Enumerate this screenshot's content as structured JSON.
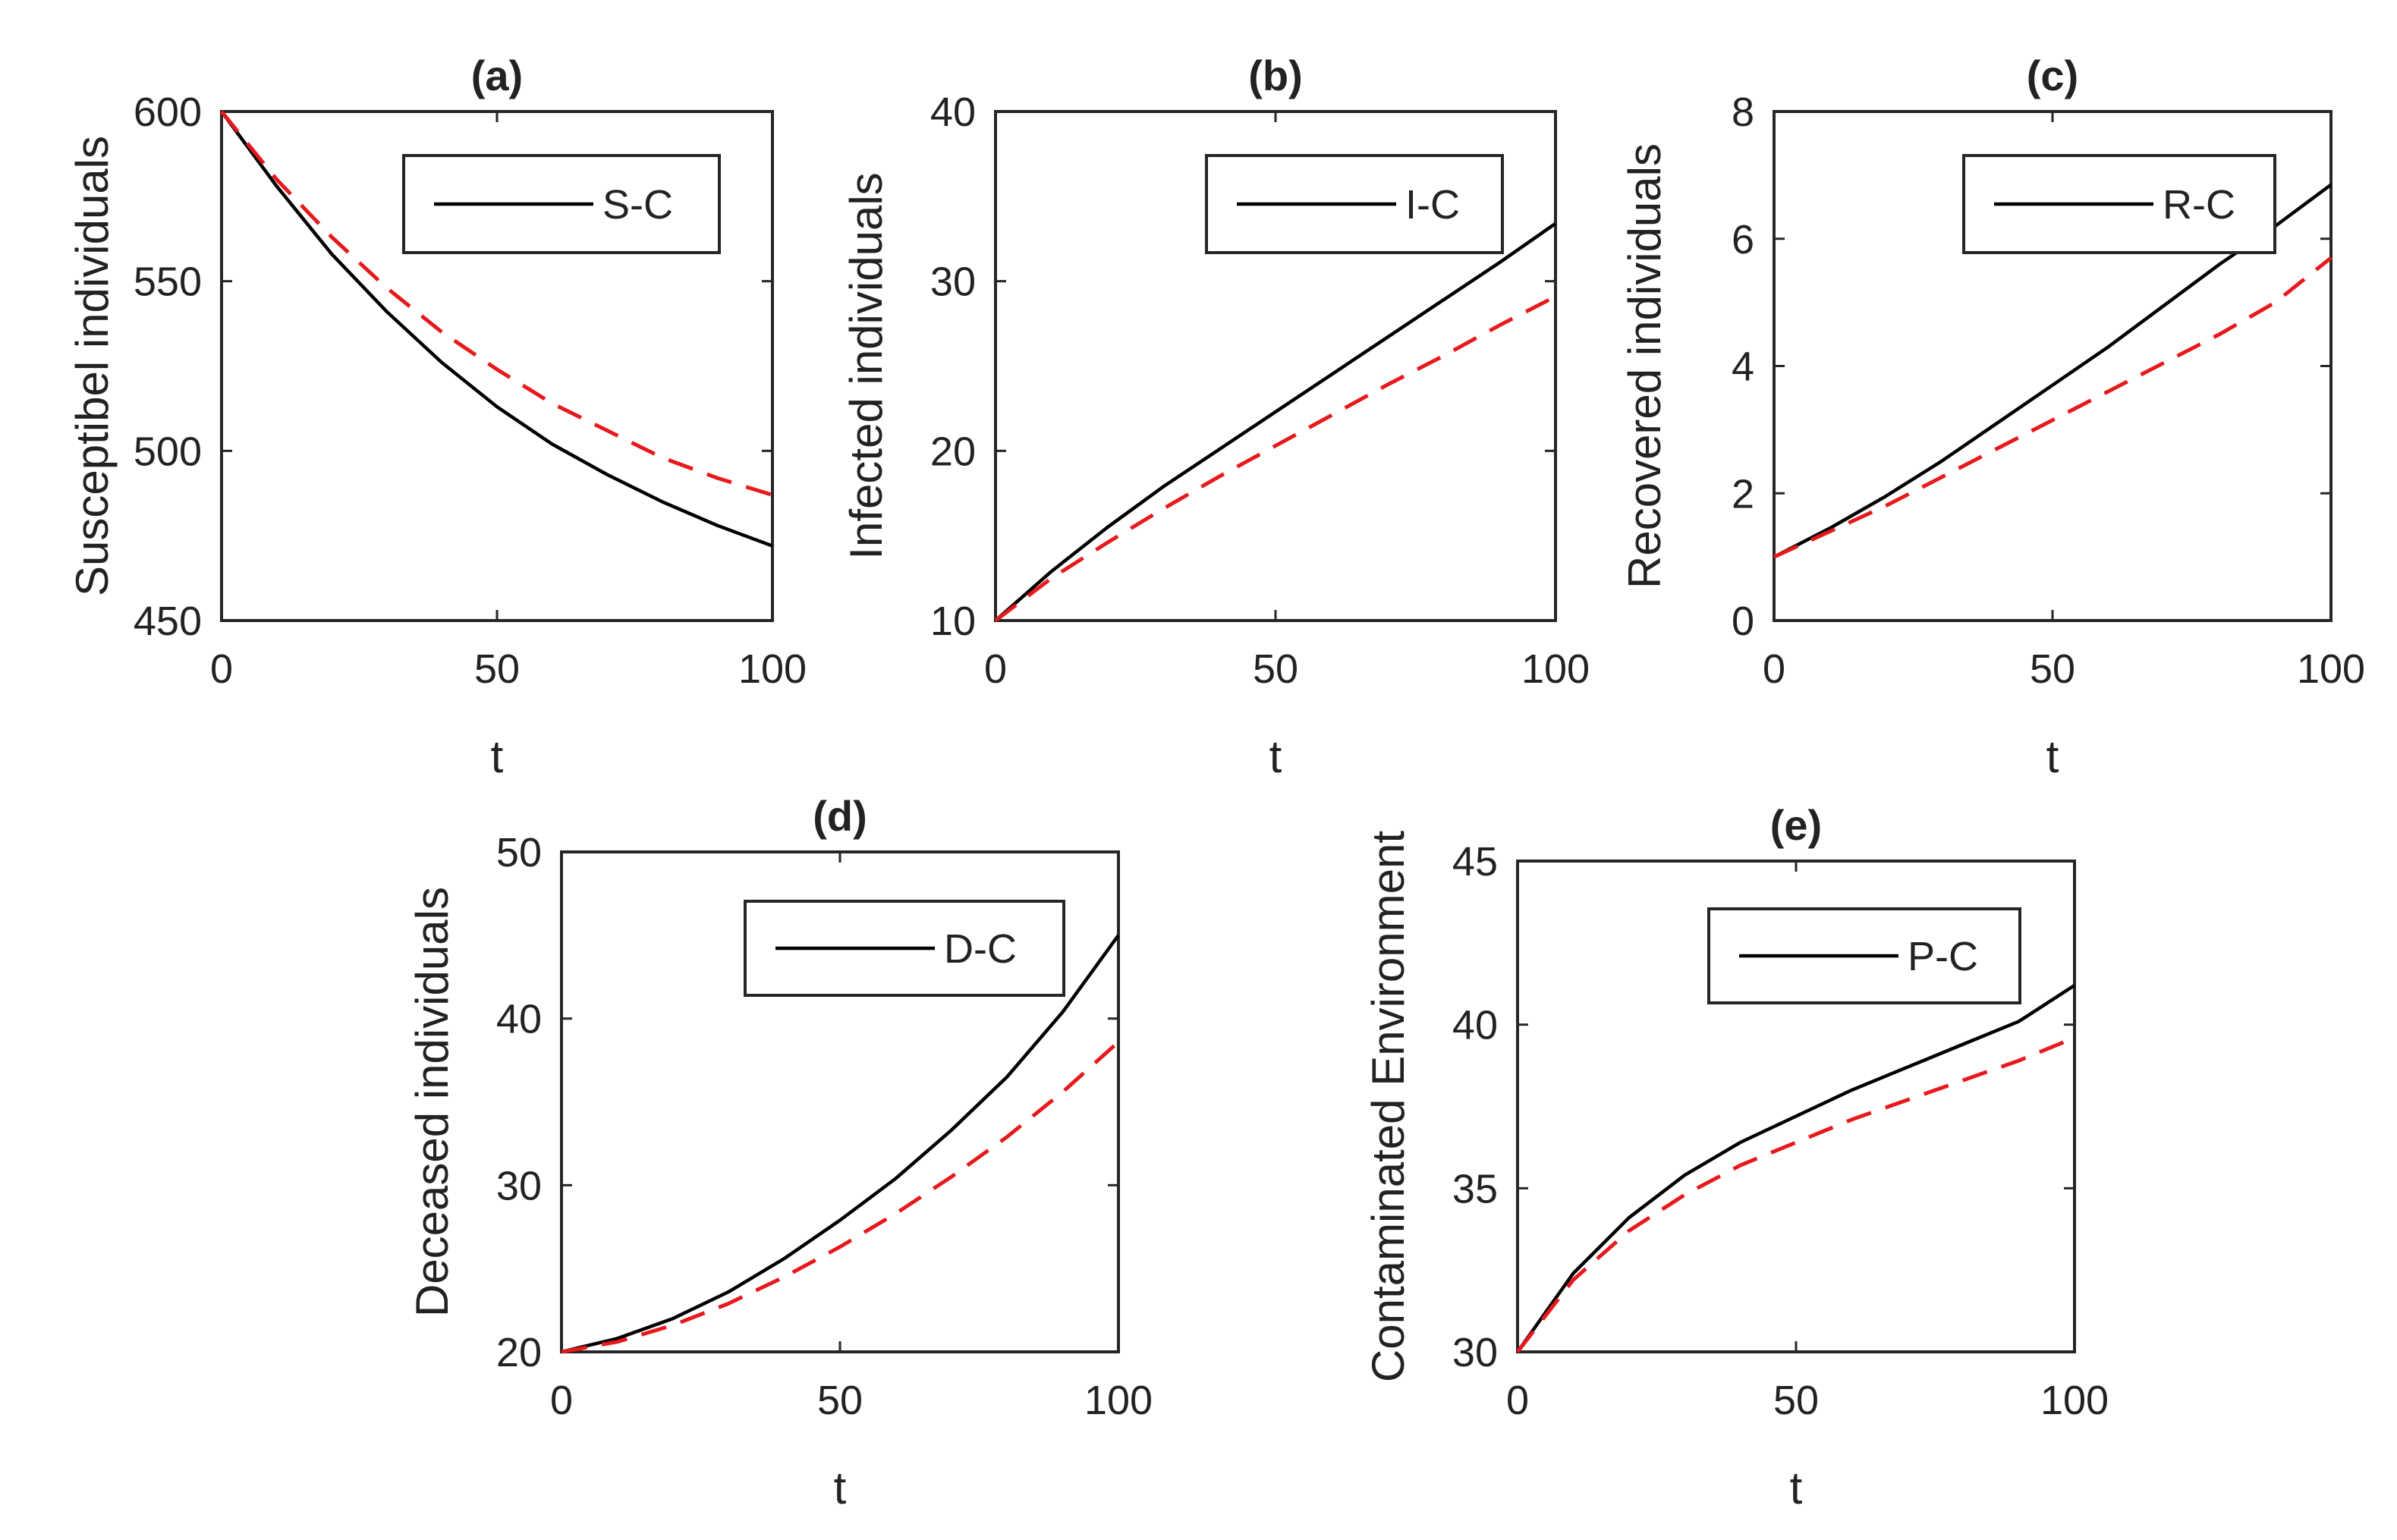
{
  "chart_data": [
    {
      "type": "line",
      "title": "(a)",
      "xlabel": "t",
      "ylabel": "Susceptibel individuals",
      "xlim": [
        0,
        100
      ],
      "ylim": [
        450,
        600
      ],
      "xticks": [
        0,
        50,
        100
      ],
      "yticks": [
        450,
        500,
        550,
        600
      ],
      "legend": {
        "label": "S-C",
        "position": "top-right"
      },
      "x": [
        0,
        10,
        20,
        30,
        40,
        50,
        60,
        70,
        80,
        90,
        100
      ],
      "series": [
        {
          "name": "S-C",
          "style": "solid",
          "color": "#000000",
          "values": [
            600,
            578,
            558,
            541,
            526,
            513,
            502,
            493,
            485,
            478,
            472
          ]
        },
        {
          "name": "",
          "style": "dashed",
          "color": "#e8191c",
          "values": [
            600,
            580,
            563,
            548,
            535,
            524,
            514,
            506,
            498,
            492,
            487
          ]
        }
      ]
    },
    {
      "type": "line",
      "title": "(b)",
      "xlabel": "t",
      "ylabel": "Infected individuals",
      "xlim": [
        0,
        100
      ],
      "ylim": [
        10,
        40
      ],
      "xticks": [
        0,
        50,
        100
      ],
      "yticks": [
        10,
        20,
        30,
        40
      ],
      "legend": {
        "label": "I-C",
        "position": "top-right"
      },
      "x": [
        0,
        10,
        20,
        30,
        40,
        50,
        60,
        70,
        80,
        90,
        100
      ],
      "series": [
        {
          "name": "I-C",
          "style": "solid",
          "color": "#000000",
          "values": [
            10,
            12.9,
            15.5,
            17.9,
            20.1,
            22.3,
            24.5,
            26.7,
            28.9,
            31.1,
            33.4
          ]
        },
        {
          "name": "",
          "style": "dashed",
          "color": "#e8191c",
          "values": [
            10,
            12.5,
            14.6,
            16.6,
            18.5,
            20.3,
            22.1,
            23.9,
            25.6,
            27.4,
            29.1
          ]
        }
      ]
    },
    {
      "type": "line",
      "title": "(c)",
      "xlabel": "t",
      "ylabel": "Recovered individuals",
      "xlim": [
        0,
        100
      ],
      "ylim": [
        0,
        8
      ],
      "xticks": [
        0,
        50,
        100
      ],
      "yticks": [
        0,
        2,
        4,
        6,
        8
      ],
      "legend": {
        "label": "R-C",
        "position": "top-right"
      },
      "x": [
        0,
        10,
        20,
        30,
        40,
        50,
        60,
        70,
        80,
        90,
        100
      ],
      "series": [
        {
          "name": "R-C",
          "style": "solid",
          "color": "#000000",
          "values": [
            1.0,
            1.45,
            1.95,
            2.5,
            3.1,
            3.7,
            4.3,
            4.95,
            5.6,
            6.2,
            6.85
          ]
        },
        {
          "name": "",
          "style": "dashed",
          "color": "#e8191c",
          "values": [
            1.0,
            1.4,
            1.8,
            2.25,
            2.7,
            3.15,
            3.6,
            4.05,
            4.5,
            5.0,
            5.7
          ]
        }
      ]
    },
    {
      "type": "line",
      "title": "(d)",
      "xlabel": "t",
      "ylabel": "Deceased individuals",
      "xlim": [
        0,
        100
      ],
      "ylim": [
        20,
        50
      ],
      "xticks": [
        0,
        50,
        100
      ],
      "yticks": [
        20,
        30,
        40,
        50
      ],
      "legend": {
        "label": "D-C",
        "position": "top-right"
      },
      "x": [
        0,
        10,
        20,
        30,
        40,
        50,
        60,
        70,
        80,
        90,
        100
      ],
      "series": [
        {
          "name": "D-C",
          "style": "solid",
          "color": "#000000",
          "values": [
            20,
            20.8,
            22.0,
            23.6,
            25.6,
            27.9,
            30.4,
            33.3,
            36.5,
            40.4,
            45.0
          ]
        },
        {
          "name": "",
          "style": "dashed",
          "color": "#e8191c",
          "values": [
            20,
            20.6,
            21.6,
            22.9,
            24.5,
            26.3,
            28.3,
            30.5,
            32.9,
            35.6,
            38.6
          ]
        }
      ]
    },
    {
      "type": "line",
      "title": "(e)",
      "xlabel": "t",
      "ylabel": "Contaminated Environment",
      "xlim": [
        0,
        100
      ],
      "ylim": [
        30,
        45
      ],
      "xticks": [
        0,
        50,
        100
      ],
      "yticks": [
        30,
        35,
        40,
        45
      ],
      "legend": {
        "label": "P-C",
        "position": "top-right"
      },
      "x": [
        0,
        10,
        20,
        30,
        40,
        50,
        60,
        70,
        80,
        90,
        100
      ],
      "series": [
        {
          "name": "P-C",
          "style": "solid",
          "color": "#000000",
          "values": [
            30,
            32.4,
            34.1,
            35.4,
            36.4,
            37.2,
            38.0,
            38.7,
            39.4,
            40.1,
            41.2
          ]
        },
        {
          "name": "",
          "style": "dashed",
          "color": "#e8191c",
          "values": [
            30,
            32.2,
            33.7,
            34.8,
            35.7,
            36.4,
            37.1,
            37.7,
            38.3,
            38.9,
            39.6
          ]
        }
      ]
    }
  ]
}
